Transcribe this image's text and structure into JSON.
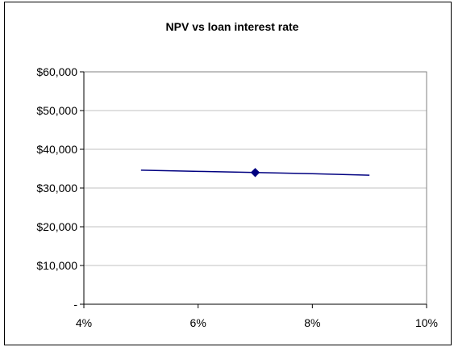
{
  "chart_data": {
    "type": "line",
    "title": "NPV vs loan interest rate",
    "xlabel": "",
    "ylabel": "",
    "x": [
      0.05,
      0.06,
      0.07,
      0.08,
      0.09
    ],
    "series": [
      {
        "values": [
          34600,
          34300,
          34000,
          33700,
          33300
        ]
      }
    ],
    "highlight_point": {
      "x": 0.07,
      "y": 34000
    },
    "xlim": [
      0.04,
      0.1
    ],
    "ylim": [
      0,
      60000
    ],
    "x_ticks": [
      0.04,
      0.06,
      0.08,
      0.1
    ],
    "x_tick_labels": [
      "4%",
      "6%",
      "8%",
      "10%"
    ],
    "y_ticks": [
      0,
      10000,
      20000,
      30000,
      40000,
      50000,
      60000
    ],
    "y_tick_labels": [
      "-",
      "$10,000",
      "$20,000",
      "$30,000",
      "$40,000",
      "$50,000",
      "$60,000"
    ],
    "grid": true,
    "legend": "none",
    "colors": {
      "line": "#000080",
      "marker": "#000080",
      "grid": "#c0c0c0",
      "plot_border": "#808080"
    }
  }
}
